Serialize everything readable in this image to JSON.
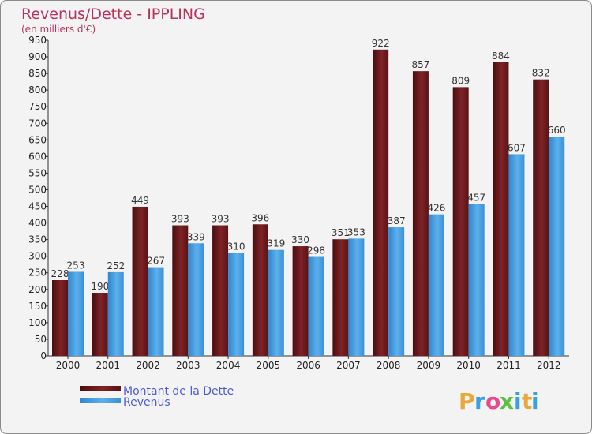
{
  "chart_data": {
    "type": "bar",
    "title": "Revenus/Dette - IPPLING",
    "subtitle": "(en milliers d'€)",
    "categories": [
      "2000",
      "2001",
      "2002",
      "2003",
      "2004",
      "2005",
      "2006",
      "2007",
      "2008",
      "2009",
      "2010",
      "2011",
      "2012"
    ],
    "series": [
      {
        "name": "Montant de la Dette",
        "color": "#7a1f22",
        "values": [
          228,
          190,
          449,
          393,
          393,
          396,
          330,
          351,
          922,
          857,
          809,
          884,
          832
        ]
      },
      {
        "name": "Revenus",
        "color": "#4da3e0",
        "values": [
          253,
          252,
          267,
          339,
          310,
          319,
          298,
          353,
          387,
          426,
          457,
          607,
          660
        ]
      }
    ],
    "ylim": [
      0,
      950
    ],
    "ytick_step": 50,
    "grid": false,
    "legend_position": "bottom-left",
    "data_labels": true
  },
  "branding": {
    "logo_letters": [
      "P",
      "r",
      "o",
      "x",
      "i",
      "t",
      "i"
    ],
    "logo_colors": [
      "#e8a93a",
      "#3aa0e0",
      "#e84a8a",
      "#5cc040",
      "#3aa0e0",
      "#e8a93a",
      "#3aa0e0"
    ]
  }
}
